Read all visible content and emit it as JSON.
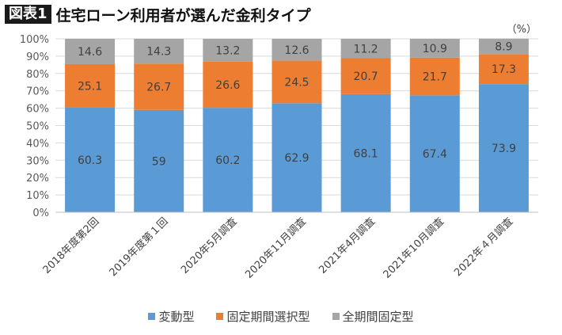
{
  "header": {
    "badge": "図表1",
    "title": "住宅ローン利用者が選んだ金利タイプ"
  },
  "chart_data": {
    "type": "bar",
    "stacked": true,
    "unit_label": "（%）",
    "categories": [
      "2018年度第2回",
      "2019年度第１回",
      "2020年5月調査",
      "2020年11月調査",
      "2021年4月調査",
      "2021年10月調査",
      "2022年４月調査"
    ],
    "series": [
      {
        "name": "変動型",
        "color": "#5b9bd5",
        "values": [
          60.3,
          59,
          60.2,
          62.9,
          68.1,
          67.4,
          73.9
        ]
      },
      {
        "name": "固定期間選択型",
        "color": "#ed7d31",
        "values": [
          25.1,
          26.7,
          26.6,
          24.5,
          20.7,
          21.7,
          17.3
        ]
      },
      {
        "name": "全期間固定型",
        "color": "#a5a5a5",
        "values": [
          14.6,
          14.3,
          13.2,
          12.6,
          11.2,
          10.9,
          8.9
        ]
      }
    ],
    "yticks": [
      "0%",
      "10%",
      "20%",
      "30%",
      "40%",
      "50%",
      "60%",
      "70%",
      "80%",
      "90%",
      "100%"
    ],
    "ylim": [
      0,
      100
    ],
    "grid": true,
    "legend_position": "bottom"
  }
}
